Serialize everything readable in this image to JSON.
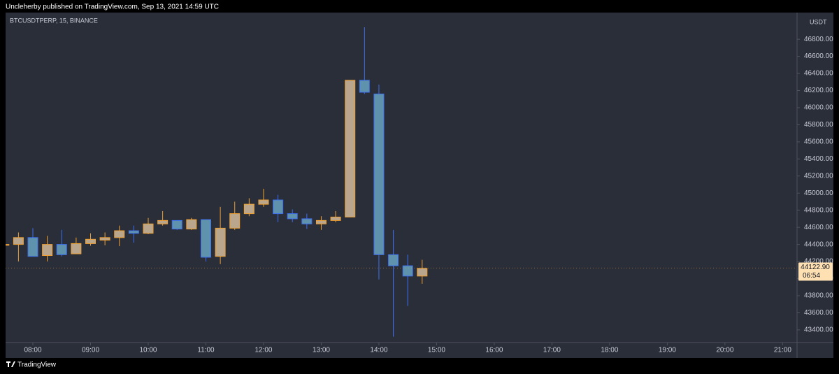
{
  "header": {
    "text": "Uncleherby published on TradingView.com, Sep 13, 2021 14:59 UTC"
  },
  "footer": {
    "brand": "TradingView"
  },
  "chart_data": {
    "type": "candlestick",
    "title": "BTCUSDTPERP, 15, BINANCE",
    "currency": "USDT",
    "x": [
      7.5,
      7.75,
      8,
      8.25,
      8.5,
      8.75,
      9,
      9.25,
      9.5,
      9.75,
      10,
      10.25,
      10.5,
      10.75,
      11,
      11.25,
      11.5,
      11.75,
      12,
      12.25,
      12.5,
      12.75,
      13,
      13.25,
      13.5,
      13.75,
      14,
      14.25,
      14.5,
      14.75
    ],
    "open": [
      44390,
      44400,
      44480,
      44270,
      44400,
      44290,
      44410,
      44450,
      44480,
      44560,
      44530,
      44640,
      44680,
      44580,
      44690,
      44260,
      44590,
      44760,
      44870,
      44920,
      44760,
      44700,
      44640,
      44680,
      44720,
      46320,
      46160,
      44280,
      44150,
      44030
    ],
    "high": [
      44570,
      44540,
      44590,
      44500,
      44570,
      44480,
      44530,
      44540,
      44620,
      44620,
      44710,
      44790,
      44680,
      44710,
      44690,
      44840,
      44900,
      44940,
      45050,
      44980,
      44810,
      44760,
      44730,
      44790,
      46320,
      46940,
      46270,
      44570,
      44280,
      44220
    ],
    "low": [
      44250,
      44200,
      44260,
      44200,
      44260,
      44290,
      44385,
      44390,
      44380,
      44420,
      44520,
      44620,
      44570,
      44570,
      44200,
      44170,
      44570,
      44730,
      44840,
      44660,
      44660,
      44580,
      44570,
      44660,
      44720,
      46160,
      43990,
      43320,
      43680,
      43940
    ],
    "close": [
      44400,
      44480,
      44260,
      44400,
      44280,
      44410,
      44460,
      44480,
      44560,
      44530,
      44640,
      44680,
      44580,
      44690,
      44250,
      44590,
      44760,
      44870,
      44920,
      44760,
      44700,
      44640,
      44680,
      44720,
      46320,
      46180,
      44280,
      44150,
      44030,
      44120
    ],
    "up_color": "#f0a030",
    "up_fill": "#b9a68c",
    "down_color": "#3d6ff0",
    "down_fill": "#5f93ad",
    "xlim": [
      7.527,
      21.25
    ],
    "xticks": [
      {
        "value": 8,
        "label": "08:00"
      },
      {
        "value": 9,
        "label": "09:00"
      },
      {
        "value": 10,
        "label": "10:00"
      },
      {
        "value": 11,
        "label": "11:00"
      },
      {
        "value": 12,
        "label": "12:00"
      },
      {
        "value": 13,
        "label": "13:00"
      },
      {
        "value": 14,
        "label": "14:00"
      },
      {
        "value": 15,
        "label": "15:00"
      },
      {
        "value": 16,
        "label": "16:00"
      },
      {
        "value": 17,
        "label": "17:00"
      },
      {
        "value": 18,
        "label": "18:00"
      },
      {
        "value": 19,
        "label": "19:00"
      },
      {
        "value": 20,
        "label": "20:00"
      },
      {
        "value": 21,
        "label": "21:00"
      }
    ],
    "ylim": [
      43252,
      47112
    ],
    "yticks": [
      {
        "value": 43400,
        "label": "43400.00"
      },
      {
        "value": 43600,
        "label": "43600.00"
      },
      {
        "value": 43800,
        "label": "43800.00"
      },
      {
        "value": 44000,
        "label": "44000.00"
      },
      {
        "value": 44200,
        "label": "44200.00"
      },
      {
        "value": 44400,
        "label": "44400.00"
      },
      {
        "value": 44600,
        "label": "44600.00"
      },
      {
        "value": 44800,
        "label": "44800.00"
      },
      {
        "value": 45000,
        "label": "45000.00"
      },
      {
        "value": 45200,
        "label": "45200.00"
      },
      {
        "value": 45400,
        "label": "45400.00"
      },
      {
        "value": 45600,
        "label": "45600.00"
      },
      {
        "value": 45800,
        "label": "45800.00"
      },
      {
        "value": 46000,
        "label": "46000.00"
      },
      {
        "value": 46200,
        "label": "46200.00"
      },
      {
        "value": 46400,
        "label": "46400.00"
      },
      {
        "value": 46600,
        "label": "46600.00"
      },
      {
        "value": 46800,
        "label": "46800.00"
      }
    ],
    "last_price": {
      "value": 44122.9,
      "label": "44122.90"
    },
    "countdown": "06:54"
  }
}
